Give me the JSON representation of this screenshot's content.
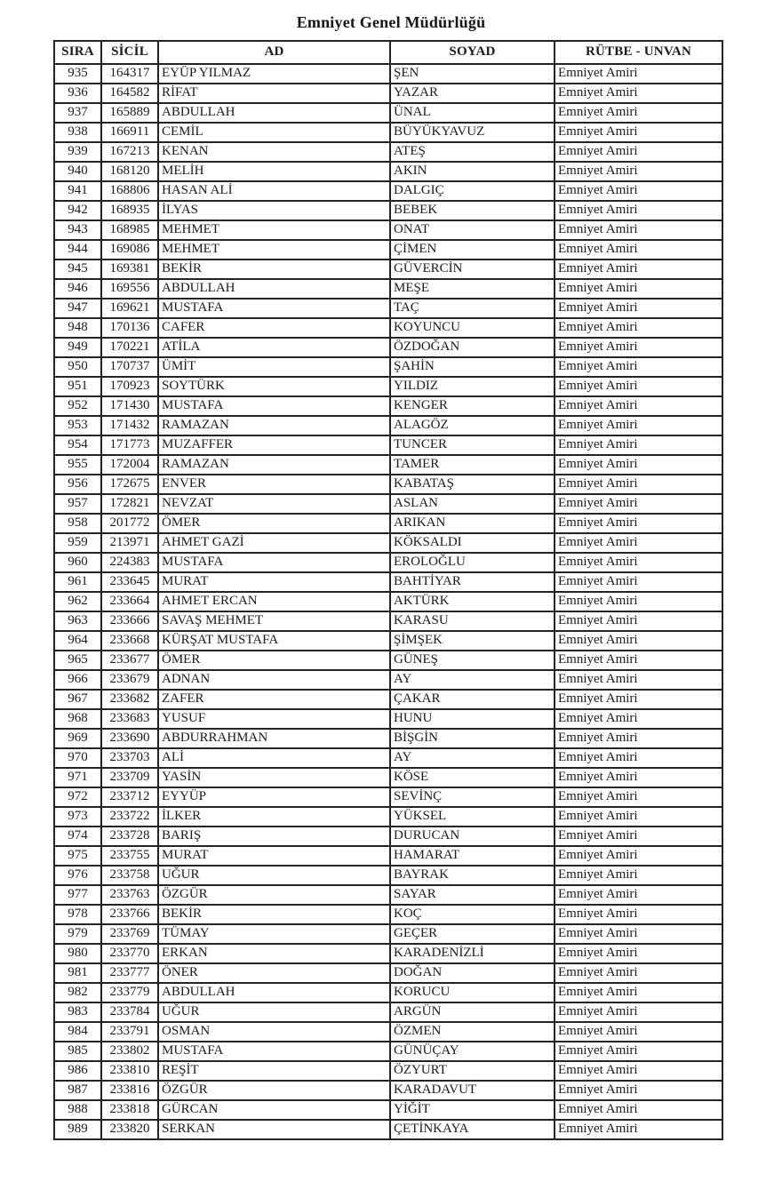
{
  "page_title": "Emniyet Genel Müdürlüğü",
  "table": {
    "columns": [
      {
        "key": "sira",
        "label": "SIRA"
      },
      {
        "key": "sicil",
        "label": "SİCİL"
      },
      {
        "key": "ad",
        "label": "AD"
      },
      {
        "key": "soyad",
        "label": "SOYAD"
      },
      {
        "key": "rutbe",
        "label": "RÜTBE - UNVAN"
      }
    ],
    "rows": [
      {
        "sira": "935",
        "sicil": "164317",
        "ad": "EYÜP YILMAZ",
        "soyad": "ŞEN",
        "rutbe": "Emniyet Amiri"
      },
      {
        "sira": "936",
        "sicil": "164582",
        "ad": "RİFAT",
        "soyad": "YAZAR",
        "rutbe": "Emniyet Amiri"
      },
      {
        "sira": "937",
        "sicil": "165889",
        "ad": "ABDULLAH",
        "soyad": "ÜNAL",
        "rutbe": "Emniyet Amiri"
      },
      {
        "sira": "938",
        "sicil": "166911",
        "ad": "CEMİL",
        "soyad": "BÜYÜKYAVUZ",
        "rutbe": "Emniyet Amiri"
      },
      {
        "sira": "939",
        "sicil": "167213",
        "ad": "KENAN",
        "soyad": "ATEŞ",
        "rutbe": "Emniyet Amiri"
      },
      {
        "sira": "940",
        "sicil": "168120",
        "ad": "MELİH",
        "soyad": "AKIN",
        "rutbe": "Emniyet Amiri"
      },
      {
        "sira": "941",
        "sicil": "168806",
        "ad": "HASAN ALİ",
        "soyad": "DALGIÇ",
        "rutbe": "Emniyet Amiri"
      },
      {
        "sira": "942",
        "sicil": "168935",
        "ad": "İLYAS",
        "soyad": "BEBEK",
        "rutbe": "Emniyet Amiri"
      },
      {
        "sira": "943",
        "sicil": "168985",
        "ad": "MEHMET",
        "soyad": "ONAT",
        "rutbe": "Emniyet Amiri"
      },
      {
        "sira": "944",
        "sicil": "169086",
        "ad": "MEHMET",
        "soyad": "ÇİMEN",
        "rutbe": "Emniyet Amiri"
      },
      {
        "sira": "945",
        "sicil": "169381",
        "ad": "BEKİR",
        "soyad": "GÜVERCİN",
        "rutbe": "Emniyet Amiri"
      },
      {
        "sira": "946",
        "sicil": "169556",
        "ad": "ABDULLAH",
        "soyad": "MEŞE",
        "rutbe": "Emniyet Amiri"
      },
      {
        "sira": "947",
        "sicil": "169621",
        "ad": "MUSTAFA",
        "soyad": "TAÇ",
        "rutbe": "Emniyet Amiri"
      },
      {
        "sira": "948",
        "sicil": "170136",
        "ad": "CAFER",
        "soyad": "KOYUNCU",
        "rutbe": "Emniyet Amiri"
      },
      {
        "sira": "949",
        "sicil": "170221",
        "ad": "ATİLA",
        "soyad": "ÖZDOĞAN",
        "rutbe": "Emniyet Amiri"
      },
      {
        "sira": "950",
        "sicil": "170737",
        "ad": "ÜMİT",
        "soyad": "ŞAHİN",
        "rutbe": "Emniyet Amiri"
      },
      {
        "sira": "951",
        "sicil": "170923",
        "ad": "SOYTÜRK",
        "soyad": "YILDIZ",
        "rutbe": "Emniyet Amiri"
      },
      {
        "sira": "952",
        "sicil": "171430",
        "ad": "MUSTAFA",
        "soyad": "KENGER",
        "rutbe": "Emniyet Amiri"
      },
      {
        "sira": "953",
        "sicil": "171432",
        "ad": "RAMAZAN",
        "soyad": "ALAGÖZ",
        "rutbe": "Emniyet Amiri"
      },
      {
        "sira": "954",
        "sicil": "171773",
        "ad": "MUZAFFER",
        "soyad": "TUNCER",
        "rutbe": "Emniyet Amiri"
      },
      {
        "sira": "955",
        "sicil": "172004",
        "ad": "RAMAZAN",
        "soyad": "TAMER",
        "rutbe": "Emniyet Amiri"
      },
      {
        "sira": "956",
        "sicil": "172675",
        "ad": "ENVER",
        "soyad": "KABATAŞ",
        "rutbe": "Emniyet Amiri"
      },
      {
        "sira": "957",
        "sicil": "172821",
        "ad": "NEVZAT",
        "soyad": "ASLAN",
        "rutbe": "Emniyet Amiri"
      },
      {
        "sira": "958",
        "sicil": "201772",
        "ad": "ÖMER",
        "soyad": "ARIKAN",
        "rutbe": "Emniyet Amiri"
      },
      {
        "sira": "959",
        "sicil": "213971",
        "ad": "AHMET GAZİ",
        "soyad": "KÖKSALDI",
        "rutbe": "Emniyet Amiri"
      },
      {
        "sira": "960",
        "sicil": "224383",
        "ad": "MUSTAFA",
        "soyad": "EROLOĞLU",
        "rutbe": "Emniyet Amiri"
      },
      {
        "sira": "961",
        "sicil": "233645",
        "ad": "MURAT",
        "soyad": "BAHTİYAR",
        "rutbe": "Emniyet Amiri"
      },
      {
        "sira": "962",
        "sicil": "233664",
        "ad": "AHMET ERCAN",
        "soyad": "AKTÜRK",
        "rutbe": "Emniyet Amiri"
      },
      {
        "sira": "963",
        "sicil": "233666",
        "ad": "SAVAŞ MEHMET",
        "soyad": "KARASU",
        "rutbe": "Emniyet Amiri"
      },
      {
        "sira": "964",
        "sicil": "233668",
        "ad": "KÜRŞAT MUSTAFA",
        "soyad": "ŞİMŞEK",
        "rutbe": "Emniyet Amiri"
      },
      {
        "sira": "965",
        "sicil": "233677",
        "ad": "ÖMER",
        "soyad": "GÜNEŞ",
        "rutbe": "Emniyet Amiri"
      },
      {
        "sira": "966",
        "sicil": "233679",
        "ad": "ADNAN",
        "soyad": "AY",
        "rutbe": "Emniyet Amiri"
      },
      {
        "sira": "967",
        "sicil": "233682",
        "ad": "ZAFER",
        "soyad": "ÇAKAR",
        "rutbe": "Emniyet Amiri"
      },
      {
        "sira": "968",
        "sicil": "233683",
        "ad": "YUSUF",
        "soyad": "HUNU",
        "rutbe": "Emniyet Amiri"
      },
      {
        "sira": "969",
        "sicil": "233690",
        "ad": "ABDURRAHMAN",
        "soyad": "BİŞGİN",
        "rutbe": "Emniyet Amiri"
      },
      {
        "sira": "970",
        "sicil": "233703",
        "ad": "ALİ",
        "soyad": "AY",
        "rutbe": "Emniyet Amiri"
      },
      {
        "sira": "971",
        "sicil": "233709",
        "ad": "YASİN",
        "soyad": "KÖSE",
        "rutbe": "Emniyet Amiri"
      },
      {
        "sira": "972",
        "sicil": "233712",
        "ad": "EYYÜP",
        "soyad": "SEVİNÇ",
        "rutbe": "Emniyet Amiri"
      },
      {
        "sira": "973",
        "sicil": "233722",
        "ad": "İLKER",
        "soyad": "YÜKSEL",
        "rutbe": "Emniyet Amiri"
      },
      {
        "sira": "974",
        "sicil": "233728",
        "ad": "BARIŞ",
        "soyad": "DURUCAN",
        "rutbe": "Emniyet Amiri"
      },
      {
        "sira": "975",
        "sicil": "233755",
        "ad": "MURAT",
        "soyad": "HAMARAT",
        "rutbe": "Emniyet Amiri"
      },
      {
        "sira": "976",
        "sicil": "233758",
        "ad": "UĞUR",
        "soyad": "BAYRAK",
        "rutbe": "Emniyet Amiri"
      },
      {
        "sira": "977",
        "sicil": "233763",
        "ad": "ÖZGÜR",
        "soyad": "SAYAR",
        "rutbe": "Emniyet Amiri"
      },
      {
        "sira": "978",
        "sicil": "233766",
        "ad": "BEKİR",
        "soyad": "KOÇ",
        "rutbe": "Emniyet Amiri"
      },
      {
        "sira": "979",
        "sicil": "233769",
        "ad": "TÜMAY",
        "soyad": "GEÇER",
        "rutbe": "Emniyet Amiri"
      },
      {
        "sira": "980",
        "sicil": "233770",
        "ad": "ERKAN",
        "soyad": "KARADENİZLİ",
        "rutbe": "Emniyet Amiri"
      },
      {
        "sira": "981",
        "sicil": "233777",
        "ad": "ÖNER",
        "soyad": "DOĞAN",
        "rutbe": "Emniyet Amiri"
      },
      {
        "sira": "982",
        "sicil": "233779",
        "ad": "ABDULLAH",
        "soyad": "KORUCU",
        "rutbe": "Emniyet Amiri"
      },
      {
        "sira": "983",
        "sicil": "233784",
        "ad": "UĞUR",
        "soyad": "ARGÜN",
        "rutbe": "Emniyet Amiri"
      },
      {
        "sira": "984",
        "sicil": "233791",
        "ad": "OSMAN",
        "soyad": "ÖZMEN",
        "rutbe": "Emniyet Amiri"
      },
      {
        "sira": "985",
        "sicil": "233802",
        "ad": "MUSTAFA",
        "soyad": "GÜNÜÇAY",
        "rutbe": "Emniyet Amiri"
      },
      {
        "sira": "986",
        "sicil": "233810",
        "ad": "REŞİT",
        "soyad": "ÖZYURT",
        "rutbe": "Emniyet Amiri"
      },
      {
        "sira": "987",
        "sicil": "233816",
        "ad": "ÖZGÜR",
        "soyad": "KARADAVUT",
        "rutbe": "Emniyet Amiri"
      },
      {
        "sira": "988",
        "sicil": "233818",
        "ad": "GÜRCAN",
        "soyad": "YİĞİT",
        "rutbe": "Emniyet Amiri"
      },
      {
        "sira": "989",
        "sicil": "233820",
        "ad": "SERKAN",
        "soyad": "ÇETİNKAYA",
        "rutbe": "Emniyet Amiri"
      }
    ]
  },
  "colors": {
    "ink": "#1b1b1b",
    "paper": "#ffffff",
    "border": "#232323"
  }
}
